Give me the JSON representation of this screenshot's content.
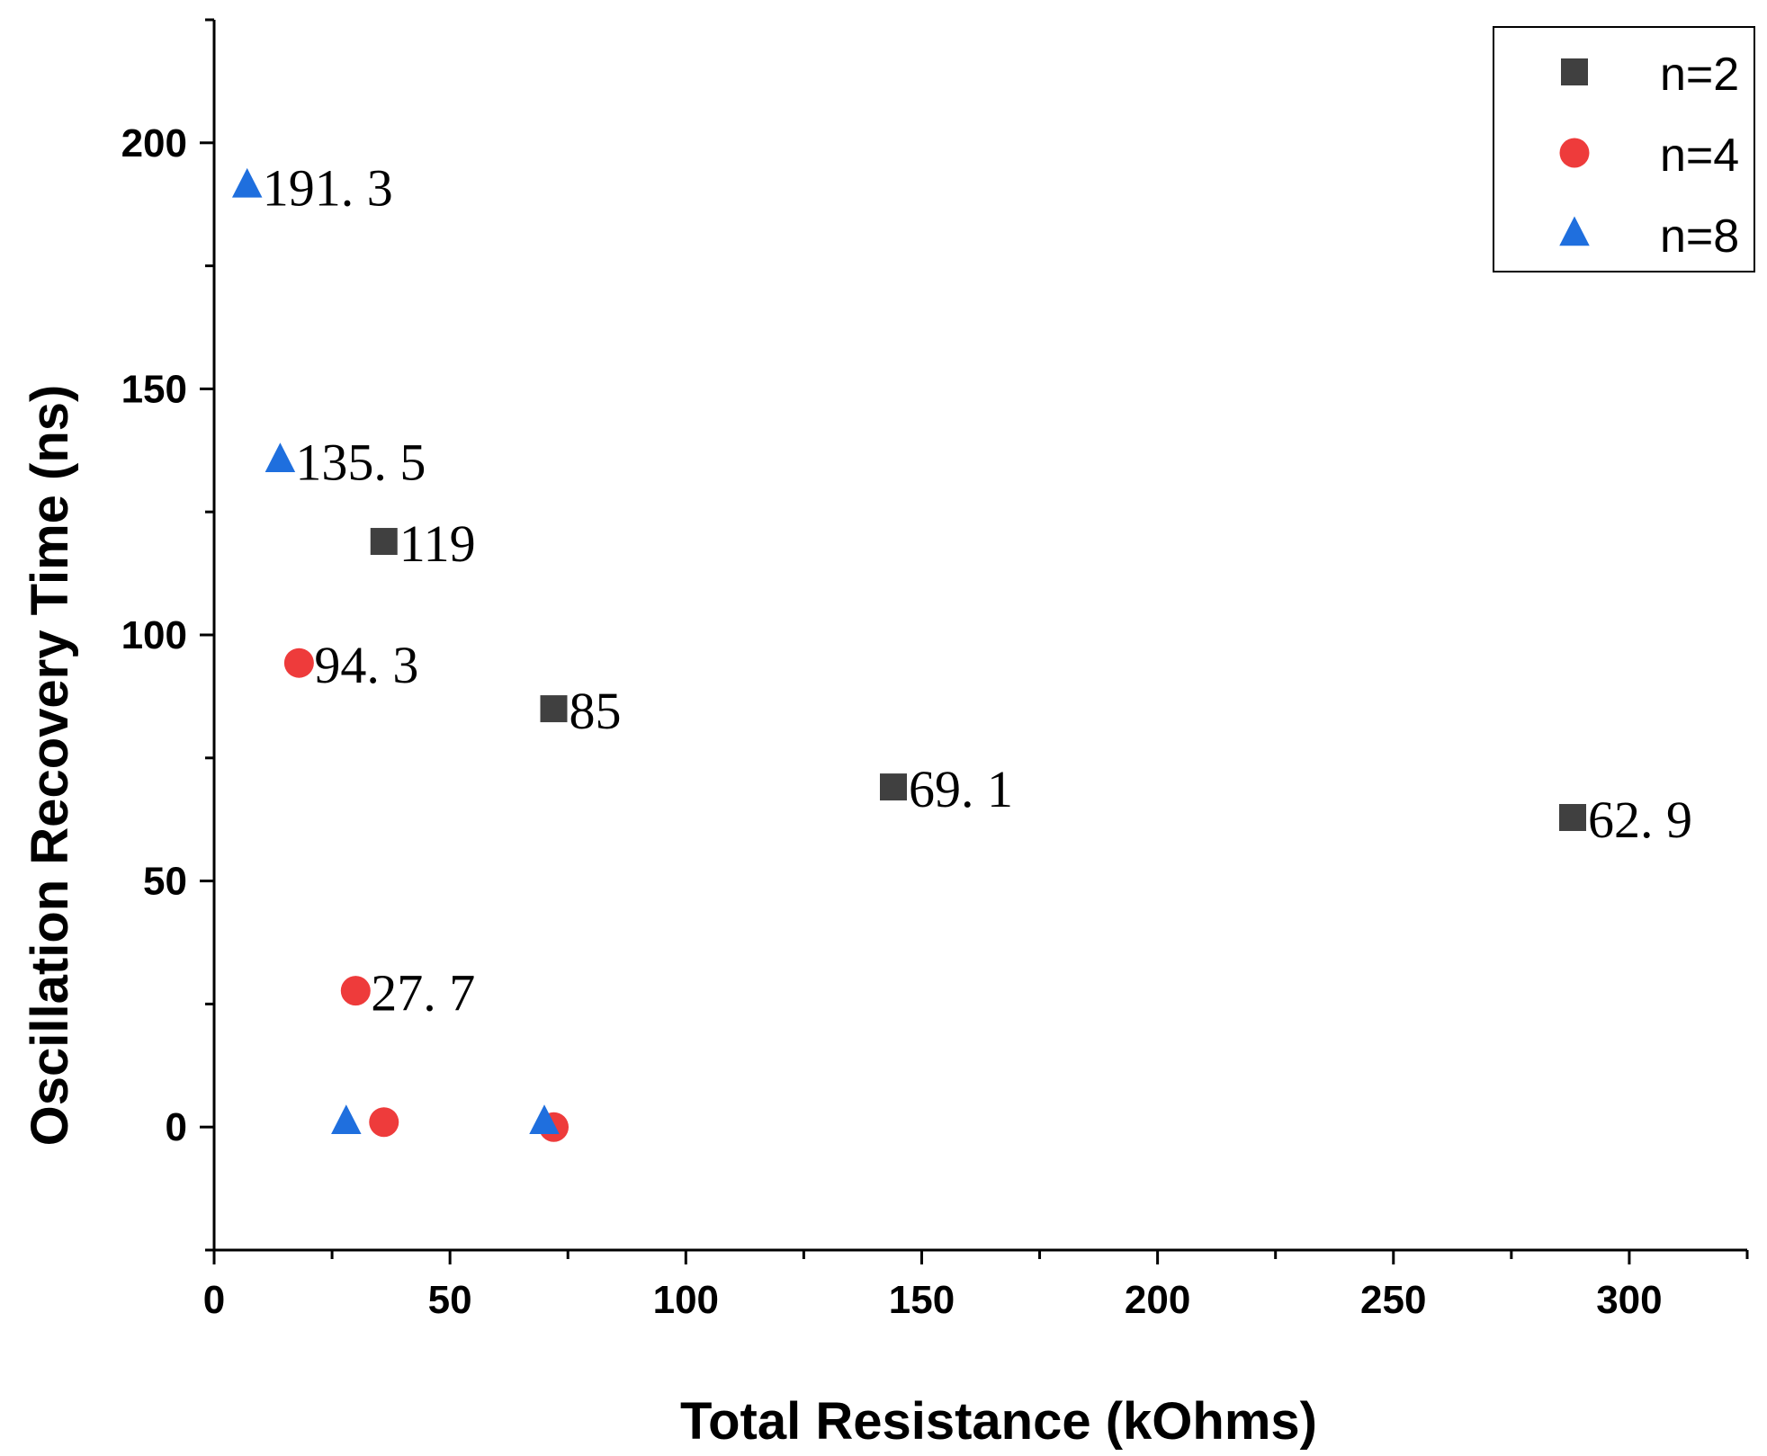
{
  "chart_data": {
    "type": "scatter",
    "xlabel": "Total Resistance (kOhms)",
    "ylabel": "Oscillation Recovery Time (ns)",
    "xlim": [
      0,
      325
    ],
    "ylim": [
      -25,
      225
    ],
    "x_ticks": [
      0,
      50,
      100,
      150,
      200,
      250,
      300
    ],
    "y_ticks": [
      0,
      50,
      100,
      150,
      200
    ],
    "x_minor_step": 25,
    "y_minor_step": 25,
    "legend_position": "top-right",
    "series": [
      {
        "name": "n=2",
        "marker": "square",
        "color": "#404040",
        "points": [
          {
            "x": 36,
            "y": 119,
            "label": "119"
          },
          {
            "x": 72,
            "y": 85,
            "label": "85"
          },
          {
            "x": 144,
            "y": 69.1,
            "label": "69. 1"
          },
          {
            "x": 288,
            "y": 62.9,
            "label": "62. 9"
          }
        ]
      },
      {
        "name": "n=4",
        "marker": "circle",
        "color": "#ee3b3b",
        "points": [
          {
            "x": 18,
            "y": 94.3,
            "label": "94. 3"
          },
          {
            "x": 30,
            "y": 27.7,
            "label": "27. 7"
          },
          {
            "x": 36,
            "y": 1,
            "label": ""
          },
          {
            "x": 72,
            "y": 0,
            "label": ""
          }
        ]
      },
      {
        "name": "n=8",
        "marker": "triangle",
        "color": "#1f6fde",
        "points": [
          {
            "x": 7,
            "y": 191.3,
            "label": "191. 3"
          },
          {
            "x": 14,
            "y": 135.5,
            "label": "135. 5"
          },
          {
            "x": 28,
            "y": 1,
            "label": ""
          },
          {
            "x": 70,
            "y": 1,
            "label": ""
          }
        ]
      }
    ]
  }
}
